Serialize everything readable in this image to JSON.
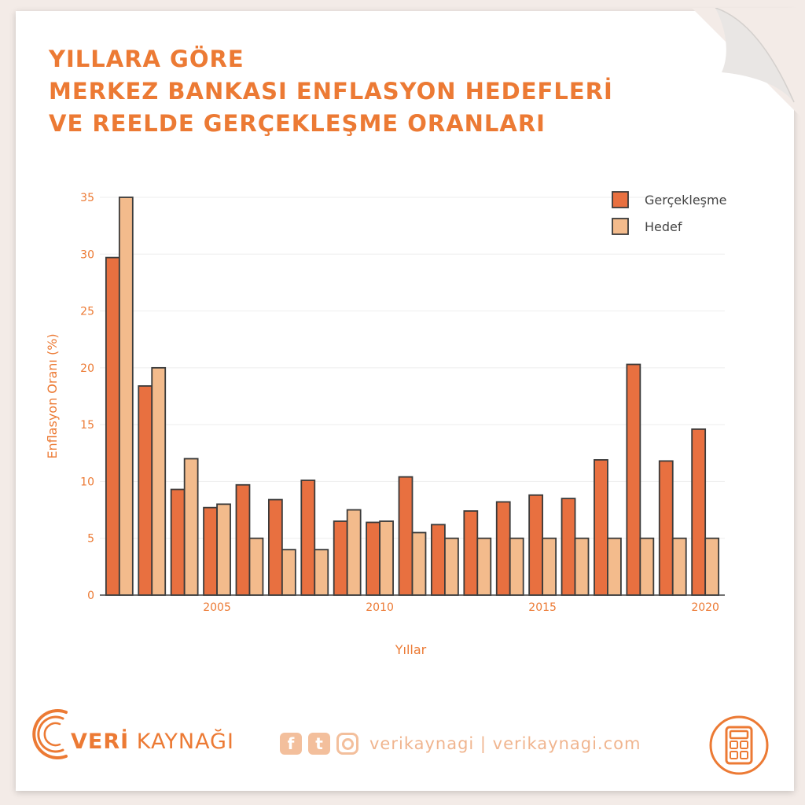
{
  "title": {
    "line1": "YILLARA GÖRE",
    "line2": "MERKEZ BANKASI ENFLASYON HEDEFLERİ",
    "line3": "VE REELDE GERÇEKLEŞME ORANLARI"
  },
  "colors": {
    "accent": "#ec7a34",
    "gerceklesme": "#e87040",
    "hedef": "#f3bb8c",
    "bar_outline": "#3a3a3a"
  },
  "chart_data": {
    "type": "bar",
    "title": "",
    "xlabel": "Yıllar",
    "ylabel": "Enflasyon Oranı (%)",
    "ylim": [
      0,
      35
    ],
    "yticks": [
      0,
      5,
      10,
      15,
      20,
      25,
      30,
      35
    ],
    "xticks": [
      2005,
      2010,
      2015,
      2020
    ],
    "xlim": [
      2001.4,
      2020.6
    ],
    "grid": true,
    "legend_position": "top-right",
    "categories": [
      2002,
      2003,
      2004,
      2005,
      2006,
      2007,
      2008,
      2009,
      2010,
      2011,
      2012,
      2013,
      2014,
      2015,
      2016,
      2017,
      2018,
      2019,
      2020
    ],
    "series": [
      {
        "name": "Gerçekleşme",
        "color": "#e87040",
        "values": [
          29.7,
          18.4,
          9.3,
          7.7,
          9.7,
          8.4,
          10.1,
          6.5,
          6.4,
          10.4,
          6.2,
          7.4,
          8.2,
          8.8,
          8.5,
          11.9,
          20.3,
          11.8,
          14.6
        ]
      },
      {
        "name": "Hedef",
        "color": "#f3bb8c",
        "values": [
          35,
          20,
          12,
          8,
          5,
          4,
          4,
          7.5,
          6.5,
          5.5,
          5,
          5,
          5,
          5,
          5,
          5,
          5,
          5,
          5
        ]
      }
    ]
  },
  "footer": {
    "brand_prefix": "VERİ",
    "brand_suffix": " KAYNAĞI",
    "social_text": "verikaynagi | verikaynagi.com",
    "facebook_glyph": "f",
    "twitter_glyph": "t"
  }
}
